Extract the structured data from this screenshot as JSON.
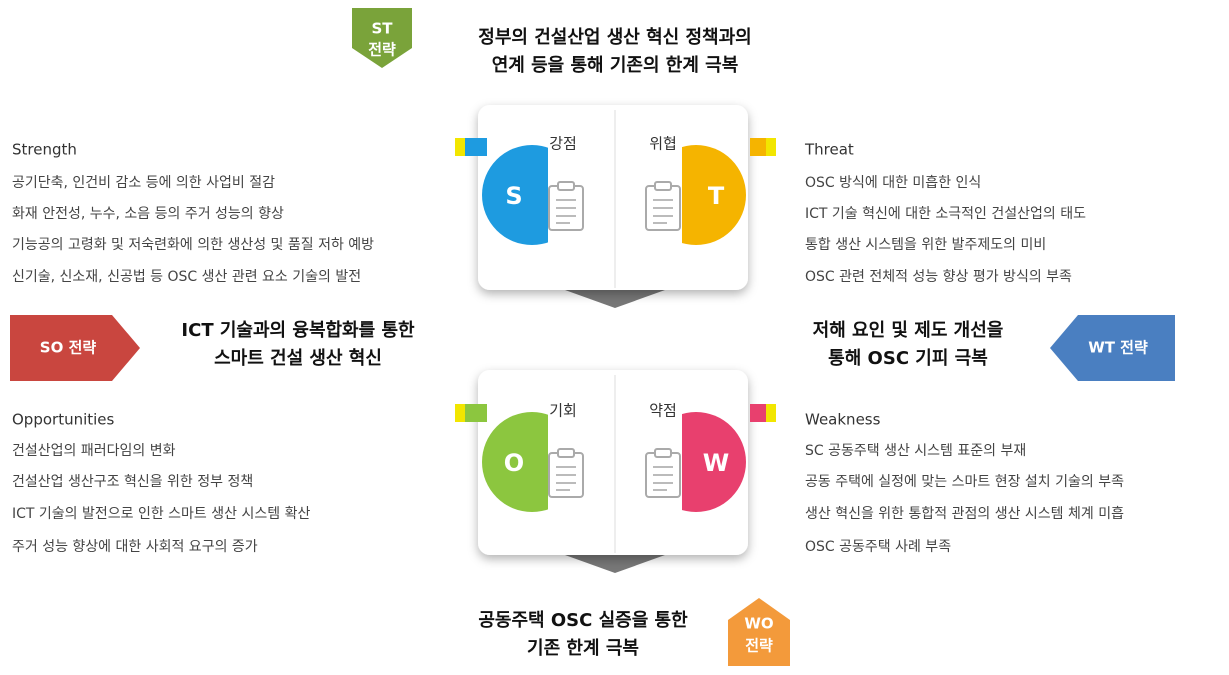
{
  "st": {
    "badge": [
      "ST",
      "전략"
    ],
    "text": [
      "정부의 건설산업 생산 혁신 정책과의",
      "연계 등을 통해 기존의 한계 극복"
    ]
  },
  "so": {
    "badge": "SO 전략",
    "text": [
      "ICT 기술과의 융복합화를 통한",
      "스마트 건설 생산 혁신"
    ]
  },
  "wt": {
    "badge": "WT 전략",
    "text": [
      "저해 요인 및 제도 개선을",
      "통해 OSC 기피 극복"
    ]
  },
  "wo": {
    "badge": [
      "WO",
      "전략"
    ],
    "text": [
      "공동주택 OSC 실증을 통한",
      "기존 한계 극복"
    ]
  },
  "strength": {
    "title": "Strength",
    "letter": "S",
    "label": "강점",
    "items": [
      "공기단축, 인건비 감소 등에 의한 사업비 절감",
      "화재 안전성, 누수, 소음 등의 주거 성능의 향상",
      "기능공의 고령화 및 저숙련화에 의한 생산성 및 품질 저하 예방",
      "신기술, 신소재, 신공법 등 OSC 생산 관련 요소 기술의 발전"
    ]
  },
  "threat": {
    "title": "Threat",
    "letter": "T",
    "label": "위협",
    "items": [
      "OSC 방식에 대한 미흡한 인식",
      "ICT 기술 혁신에 대한 소극적인 건설산업의 태도",
      "통합 생산 시스템을 위한 발주제도의 미비",
      "OSC  관련 전체적 성능 향상 평가 방식의 부족"
    ]
  },
  "opportunities": {
    "title": "Opportunities",
    "letter": "O",
    "label": "기회",
    "items": [
      "건설산업의 패러다임의 변화",
      "건설산업 생산구조 혁신을 위한 정부 정책",
      "ICT 기술의 발전으로 인한 스마트 생산 시스템 확산",
      "주거 성능 향상에 대한 사회적 요구의 증가"
    ]
  },
  "weakness": {
    "title": "Weakness",
    "letter": "W",
    "label": "약점",
    "items": [
      "SC 공동주택 생산 시스템 표준의 부재",
      "공동 주택에 실정에 맞는 스마트 현장 설치 기술의 부족",
      "생산 혁신을 위한 통합적 관점의 생산 시스템 체계 미흡",
      "OSC 공동주택 사례 부족"
    ]
  }
}
